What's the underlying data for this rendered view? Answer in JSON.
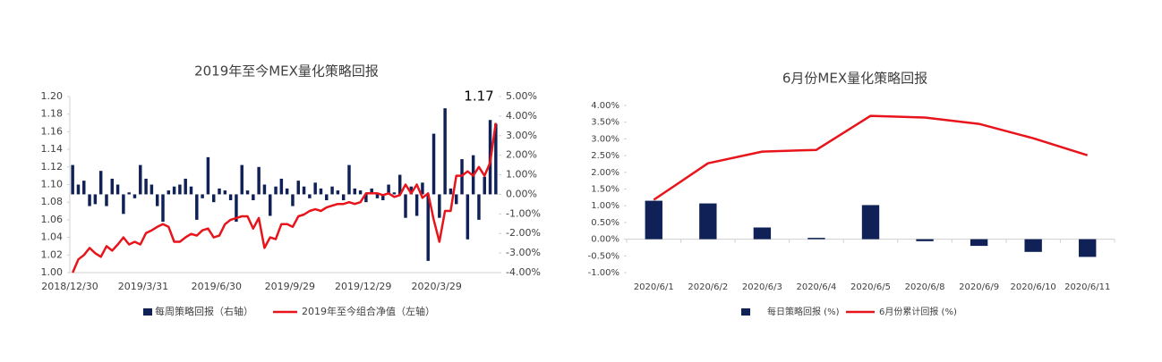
{
  "chart_data": [
    {
      "type": "combo",
      "title": "2019年至今MEX量化策略回报",
      "annotation": "1.17",
      "categories": [
        "2018/12/30",
        null,
        null,
        null,
        null,
        null,
        null,
        null,
        null,
        null,
        null,
        null,
        null,
        "2019/3/31",
        null,
        null,
        null,
        null,
        null,
        null,
        null,
        null,
        null,
        null,
        null,
        null,
        "2019/6/30",
        null,
        null,
        null,
        null,
        null,
        null,
        null,
        null,
        null,
        null,
        null,
        null,
        "2019/9/29",
        null,
        null,
        null,
        null,
        null,
        null,
        null,
        null,
        null,
        null,
        null,
        null,
        "2019/12/29",
        null,
        null,
        null,
        null,
        null,
        null,
        null,
        null,
        null,
        null,
        null,
        null,
        "2020/3/29",
        null,
        null,
        null,
        null,
        null,
        null,
        null,
        null,
        null,
        null
      ],
      "ylim": [
        1.0,
        1.2
      ],
      "yticks": [
        {
          "value": 1.0,
          "label": "1.00"
        },
        {
          "value": 1.02,
          "label": "1.02"
        },
        {
          "value": 1.04,
          "label": "1.04"
        },
        {
          "value": 1.06,
          "label": "1.06"
        },
        {
          "value": 1.08,
          "label": "1.08"
        },
        {
          "value": 1.1,
          "label": "1.10"
        },
        {
          "value": 1.12,
          "label": "1.12"
        },
        {
          "value": 1.14,
          "label": "1.14"
        },
        {
          "value": 1.16,
          "label": "1.16"
        },
        {
          "value": 1.18,
          "label": "1.18"
        },
        {
          "value": 1.2,
          "label": "1.20"
        }
      ],
      "y2lim": [
        -4,
        5
      ],
      "y2ticks": [
        {
          "value": -4,
          "label": "-4.00%"
        },
        {
          "value": -3,
          "label": "-3.00%"
        },
        {
          "value": -2,
          "label": "-2.00%"
        },
        {
          "value": -1,
          "label": "-1.00%"
        },
        {
          "value": 0,
          "label": "0.00%"
        },
        {
          "value": 1,
          "label": "1.00%"
        },
        {
          "value": 2,
          "label": "2.00%"
        },
        {
          "value": 3,
          "label": "3.00%"
        },
        {
          "value": 4,
          "label": "4.00%"
        },
        {
          "value": 5,
          "label": "5.00%"
        }
      ],
      "series": [
        {
          "name": "每周策略回报（右轴）",
          "color": "#0f2157",
          "kind": "bar",
          "axis": "y2",
          "values": [
            1.5,
            0.5,
            0.7,
            -0.6,
            -0.5,
            1.2,
            -0.6,
            0.8,
            0.5,
            -1.0,
            0.1,
            -0.2,
            1.5,
            0.8,
            0.5,
            -0.6,
            -1.4,
            0.2,
            0.4,
            0.5,
            0.8,
            0.4,
            -1.3,
            -0.2,
            1.9,
            -0.4,
            0.3,
            0.2,
            -0.3,
            -1.4,
            1.5,
            0.2,
            -0.3,
            1.4,
            0.5,
            -1.1,
            0.4,
            0.8,
            0.3,
            -0.6,
            0.7,
            0.4,
            -0.2,
            0.6,
            0.3,
            -0.3,
            0.4,
            0.2,
            -0.3,
            1.5,
            0.3,
            0.2,
            -0.4,
            0.3,
            -0.2,
            -0.3,
            0.5,
            0.1,
            1.0,
            -1.2,
            0.4,
            -1.1,
            0.6,
            -3.4,
            3.1,
            -1.2,
            4.4,
            0.3,
            -0.5,
            1.8,
            -2.3,
            2.0,
            -1.3,
            0.9,
            3.8,
            3.6
          ]
        },
        {
          "name": "2019年至今组合净值（左轴）",
          "color": "#e8141b",
          "kind": "line",
          "axis": "y",
          "values": [
            1.0,
            1.015,
            1.02,
            1.028,
            1.022,
            1.018,
            1.03,
            1.025,
            1.032,
            1.04,
            1.032,
            1.035,
            1.032,
            1.045,
            1.048,
            1.052,
            1.055,
            1.052,
            1.035,
            1.035,
            1.04,
            1.044,
            1.042,
            1.048,
            1.05,
            1.04,
            1.042,
            1.055,
            1.06,
            1.062,
            1.064,
            1.064,
            1.05,
            1.062,
            1.028,
            1.04,
            1.038,
            1.055,
            1.055,
            1.052,
            1.064,
            1.066,
            1.07,
            1.072,
            1.07,
            1.074,
            1.076,
            1.078,
            1.078,
            1.08,
            1.078,
            1.08,
            1.09,
            1.09,
            1.09,
            1.088,
            1.09,
            1.086,
            1.088,
            1.1,
            1.09,
            1.1,
            1.085,
            1.09,
            1.06,
            1.035,
            1.07,
            1.07,
            1.11,
            1.11,
            1.115,
            1.11,
            1.12,
            1.11,
            1.125,
            1.17
          ]
        }
      ]
    },
    {
      "type": "combo",
      "title": "6月份MEX量化策略回报",
      "categories": [
        "2020/6/1",
        "2020/6/2",
        "2020/6/3",
        "2020/6/4",
        "2020/6/5",
        "2020/6/8",
        "2020/6/9",
        "2020/6/10",
        "2020/6/11"
      ],
      "ylim": [
        -1,
        4
      ],
      "yticks": [
        {
          "value": -1,
          "label": "-1.00%"
        },
        {
          "value": -0.5,
          "label": "-0.50%"
        },
        {
          "value": 0,
          "label": "0.00%"
        },
        {
          "value": 0.5,
          "label": "0.50%"
        },
        {
          "value": 1,
          "label": "1.00%"
        },
        {
          "value": 1.5,
          "label": "1.50%"
        },
        {
          "value": 2,
          "label": "2.00%"
        },
        {
          "value": 2.5,
          "label": "2.50%"
        },
        {
          "value": 3,
          "label": "3.00%"
        },
        {
          "value": 3.5,
          "label": "3.50%"
        },
        {
          "value": 4,
          "label": "4.00%"
        }
      ],
      "series": [
        {
          "name": "每日策略回报 (%)",
          "color": "#0f2157",
          "kind": "bar",
          "axis": "y",
          "values": [
            1.15,
            1.07,
            0.35,
            0.04,
            1.02,
            -0.06,
            -0.2,
            -0.38,
            -0.53
          ]
        },
        {
          "name": "6月份累计回报 (%)",
          "color": "#e8141b",
          "kind": "line",
          "axis": "y",
          "values": [
            1.18,
            2.27,
            2.62,
            2.67,
            3.69,
            3.64,
            3.45,
            3.02,
            2.51
          ]
        }
      ]
    }
  ]
}
